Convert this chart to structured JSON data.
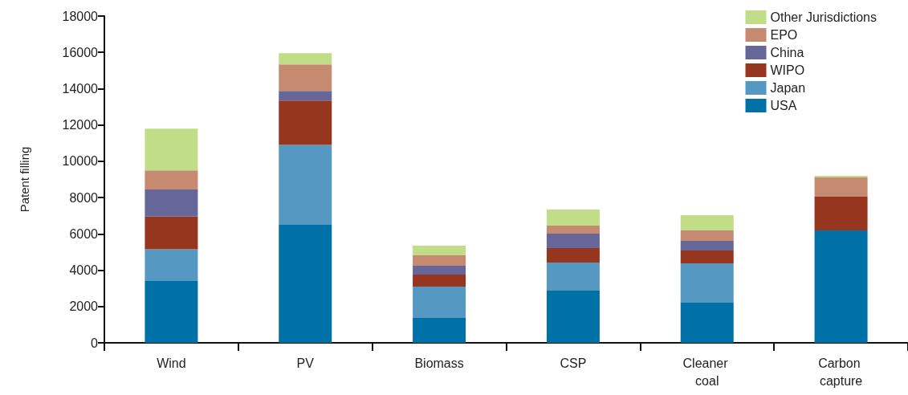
{
  "chart_data": {
    "type": "bar",
    "stacked": true,
    "ylabel": "Patent filling",
    "categories": [
      "Wind",
      "PV",
      "Biomass",
      "CSP",
      "Cleaner coal",
      "Carbon capture"
    ],
    "ylim": [
      0,
      18000
    ],
    "yticks": [
      0,
      2000,
      4000,
      6000,
      8000,
      10000,
      12000,
      14000,
      16000,
      18000
    ],
    "grid": false,
    "legend": "top right",
    "series": [
      {
        "name": "USA",
        "color": "#0071a7",
        "values": [
          3400,
          6500,
          1370,
          2870,
          2210,
          6190
        ]
      },
      {
        "name": "Japan",
        "color": "#5599c3",
        "values": [
          1750,
          4400,
          1730,
          1550,
          2170,
          0
        ]
      },
      {
        "name": "WIPO",
        "color": "#97361f",
        "values": [
          1800,
          2450,
          660,
          800,
          710,
          1860
        ]
      },
      {
        "name": "China",
        "color": "#666699",
        "values": [
          1500,
          530,
          490,
          800,
          530,
          0
        ]
      },
      {
        "name": "EPO",
        "color": "#c58a70",
        "values": [
          1050,
          1460,
          570,
          440,
          570,
          1060
        ]
      },
      {
        "name": "Other Jurisdictions",
        "color": "#c2dd88",
        "values": [
          2300,
          620,
          530,
          880,
          840,
          90
        ]
      }
    ]
  }
}
